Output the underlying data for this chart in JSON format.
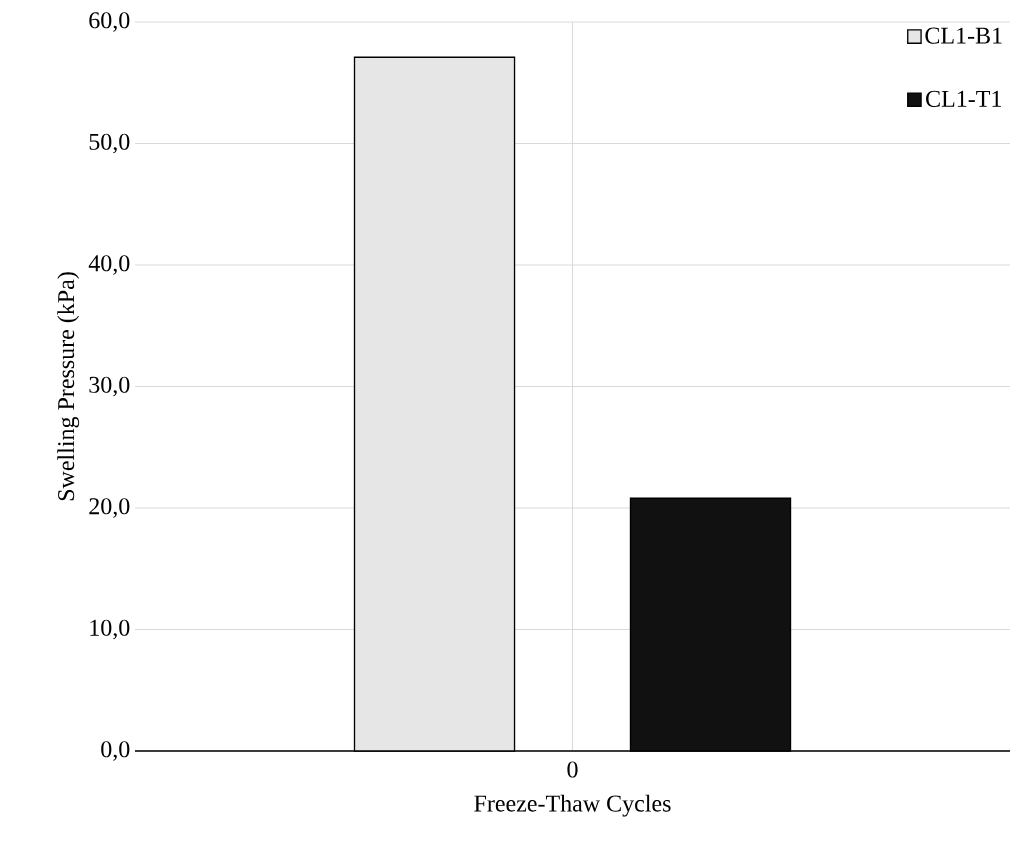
{
  "chart_data": {
    "type": "bar",
    "xlabel": "Freeze-Thaw Cycles",
    "ylabel": "Swelling Pressure (kPa)",
    "categories": [
      "0"
    ],
    "series": [
      {
        "name": "CL1-B1",
        "color": "#e6e6e6",
        "values": [
          57.1
        ]
      },
      {
        "name": "CL1-T1",
        "color": "#111111",
        "values": [
          20.8
        ]
      }
    ],
    "ylim": [
      0,
      60
    ],
    "yticks": [
      {
        "value": 0,
        "label": "0,0"
      },
      {
        "value": 10,
        "label": "10,0"
      },
      {
        "value": 20,
        "label": "20,0"
      },
      {
        "value": 30,
        "label": "30,0"
      },
      {
        "value": 40,
        "label": "40,0"
      },
      {
        "value": 50,
        "label": "50,0"
      },
      {
        "value": 60,
        "label": "60,0"
      }
    ],
    "grid": true,
    "legend": "top right"
  }
}
